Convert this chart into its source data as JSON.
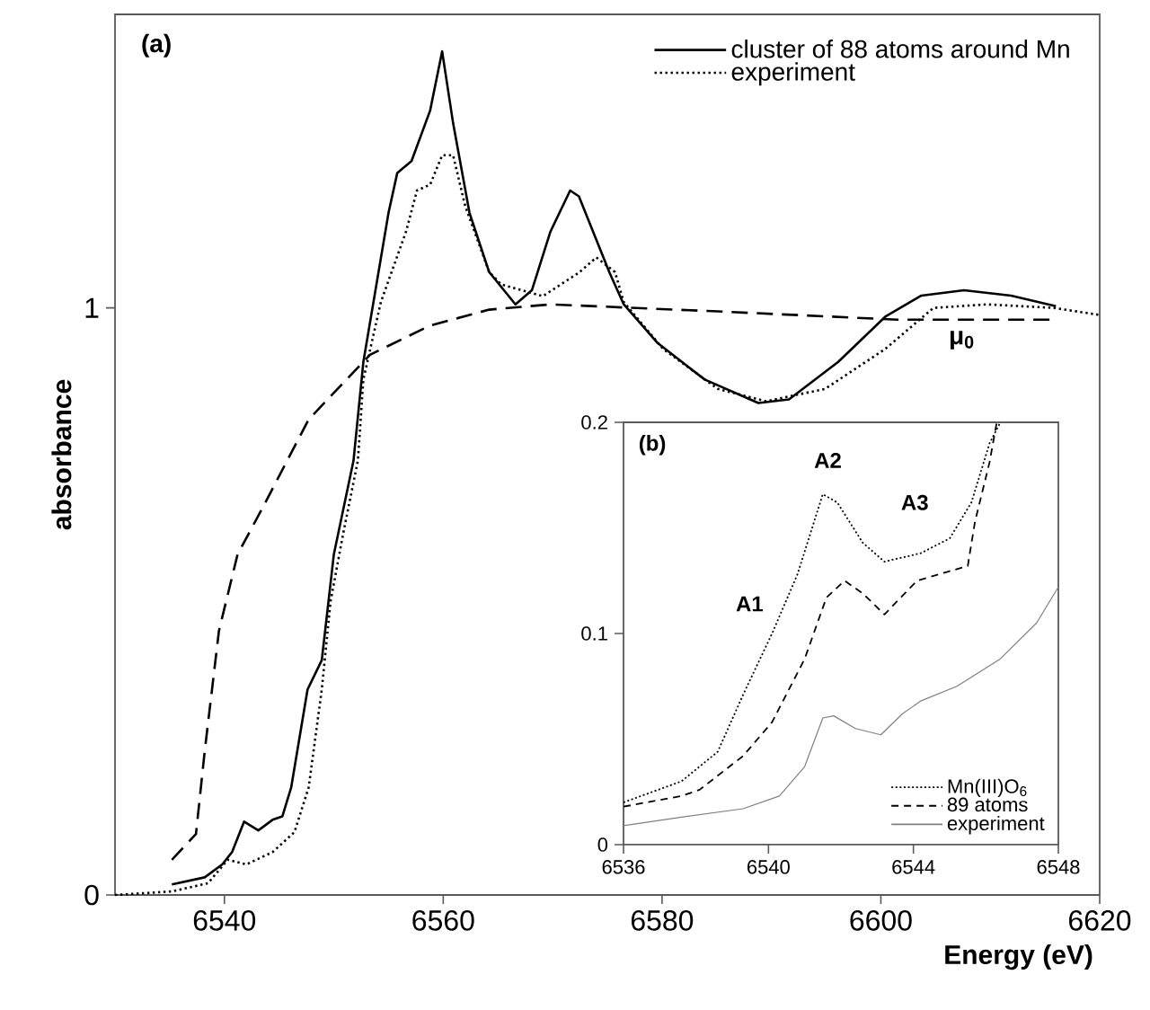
{
  "chart_data": [
    {
      "type": "line",
      "xlabel": "Energy (eV)",
      "ylabel": "absorbance",
      "xlim": [
        6530,
        6620
      ],
      "ylim": [
        0,
        1.5
      ],
      "xticks": [
        6540,
        6560,
        6580,
        6600,
        6620
      ],
      "yticks": [
        0,
        1
      ],
      "legend": "top right",
      "grid": false,
      "annotations": [
        "(a)",
        "μ$_{0}$"
      ],
      "series": [
        {
          "name": "cluster of 88 atoms around Mn",
          "color": "#000000",
          "line_style": "solid",
          "x": [
            6535.2,
            6538.2,
            6539.8,
            6540.7,
            6541.8,
            6543.1,
            6544.4,
            6545.3,
            6546.1,
            6547.6,
            6548.9,
            6550.0,
            6551.8,
            6552.7,
            6555.0,
            6555.8,
            6557.1,
            6558.8,
            6559.9,
            6560.9,
            6562.4,
            6564.2,
            6566.6,
            6568.1,
            6569.8,
            6571.6,
            6572.4,
            6575.2,
            6576.5,
            6579.6,
            6583.9,
            6588.8,
            6591.6,
            6596.1,
            6600.4,
            6603.7,
            6607.6,
            6611.9,
            6616.0
          ],
          "values": [
            0.018,
            0.03,
            0.052,
            0.073,
            0.125,
            0.11,
            0.128,
            0.134,
            0.183,
            0.35,
            0.4,
            0.58,
            0.74,
            0.908,
            1.162,
            1.23,
            1.25,
            1.336,
            1.437,
            1.315,
            1.162,
            1.061,
            1.006,
            1.03,
            1.13,
            1.2,
            1.19,
            1.06,
            1.006,
            0.94,
            0.878,
            0.838,
            0.844,
            0.908,
            0.985,
            1.021,
            1.03,
            1.021,
            1.003
          ]
        },
        {
          "name": "experiment",
          "color": "#000000",
          "line_style": "dotted",
          "x": [
            6530,
            6535.2,
            6538.5,
            6540.3,
            6542.0,
            6544.4,
            6546.4,
            6547.7,
            6548.9,
            6549.7,
            6550.9,
            6552.2,
            6552.7,
            6554.3,
            6556.6,
            6557.6,
            6558.8,
            6559.9,
            6560.9,
            6562.0,
            6564.2,
            6565.3,
            6569.1,
            6572.4,
            6574.0,
            6575.7,
            6576.5,
            6580.1,
            6585.1,
            6589.5,
            6594.9,
            6600.4,
            6604.8,
            6609.7,
            6615.8,
            6620
          ],
          "values": [
            0.0,
            0.006,
            0.02,
            0.06,
            0.052,
            0.073,
            0.107,
            0.183,
            0.35,
            0.5,
            0.62,
            0.74,
            0.878,
            1.01,
            1.13,
            1.2,
            1.21,
            1.26,
            1.26,
            1.174,
            1.061,
            1.04,
            1.02,
            1.06,
            1.086,
            1.061,
            1.01,
            0.93,
            0.862,
            0.841,
            0.862,
            0.93,
            1.0,
            1.006,
            1.0,
            0.988
          ]
        },
        {
          "color": "#000000",
          "line_style": "dashed",
          "x": [
            6535.2,
            6537.4,
            6538.2,
            6539.5,
            6541.2,
            6543.5,
            6547.7,
            6553.3,
            6558.8,
            6564.2,
            6569.8,
            6585.1,
            6601.5,
            6615.8
          ],
          "values": [
            0.06,
            0.104,
            0.245,
            0.45,
            0.58,
            0.66,
            0.81,
            0.92,
            0.97,
            0.997,
            1.006,
            0.994,
            0.98,
            0.98
          ]
        }
      ]
    },
    {
      "type": "line",
      "xlim": [
        6536,
        6548
      ],
      "ylim": [
        0,
        0.2
      ],
      "xticks": [
        6536,
        6540,
        6544,
        6548
      ],
      "yticks": [
        0,
        0.1,
        0.2
      ],
      "legend": "bottom right",
      "grid": false,
      "annotations": [
        "(b)",
        "A1",
        "A2",
        "A3"
      ],
      "series": [
        {
          "name": "Mn(III)O$_{6}$",
          "color": "#000000",
          "line_style": "dotted",
          "x": [
            6536,
            6537.6,
            6538.6,
            6539.3,
            6540.1,
            6540.8,
            6541.5,
            6541.9,
            6542.6,
            6543.2,
            6544.2,
            6545.0,
            6545.6,
            6546.1,
            6546.4
          ],
          "values": [
            0.02,
            0.03,
            0.044,
            0.071,
            0.1,
            0.128,
            0.166,
            0.162,
            0.143,
            0.134,
            0.138,
            0.145,
            0.162,
            0.19,
            0.2
          ]
        },
        {
          "name": "89 atoms",
          "color": "#000000",
          "line_style": "dashed",
          "x": [
            6536,
            6537.6,
            6538.1,
            6539.3,
            6540.1,
            6541.0,
            6541.6,
            6542.1,
            6542.6,
            6543.2,
            6544.1,
            6544.9,
            6545.5,
            6545.7,
            6546.1,
            6546.3
          ],
          "values": [
            0.018,
            0.023,
            0.026,
            0.042,
            0.058,
            0.088,
            0.117,
            0.125,
            0.119,
            0.109,
            0.125,
            0.129,
            0.132,
            0.153,
            0.181,
            0.2
          ]
        },
        {
          "name": "experiment",
          "color": "#808080",
          "line_style": "solid",
          "x": [
            6536,
            6537.6,
            6539.3,
            6540.3,
            6541.0,
            6541.5,
            6541.8,
            6542.4,
            6543.1,
            6543.7,
            6544.2,
            6545.2,
            6546.4,
            6547.4,
            6548
          ],
          "values": [
            0.009,
            0.013,
            0.017,
            0.023,
            0.037,
            0.06,
            0.061,
            0.055,
            0.052,
            0.062,
            0.068,
            0.075,
            0.088,
            0.105,
            0.122
          ]
        }
      ]
    }
  ]
}
